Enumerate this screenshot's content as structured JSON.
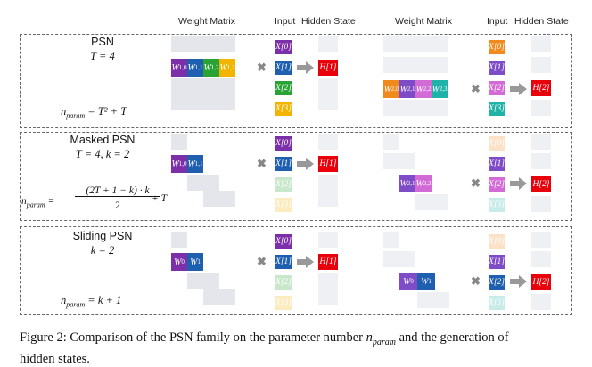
{
  "headers": {
    "weight_matrix": "Weight Matrix",
    "input": "Input",
    "hidden_state": "Hidden State"
  },
  "rows": [
    {
      "title": "PSN",
      "setting": "T = 4",
      "nparam_label": "n",
      "nparam_sub": "param",
      "nparam_formula": " = T² + T"
    },
    {
      "title": "Masked PSN",
      "setting": "T = 4, k = 2",
      "nparam_label": "n",
      "nparam_sub": "param",
      "frac_num": "(2T + 1 − k) · k",
      "frac_den": "2",
      "frac_tail": "+ T"
    },
    {
      "title": "Sliding PSN",
      "setting": "k = 2",
      "nparam_label": "n",
      "nparam_sub": "param",
      "nparam_formula": " = k + 1"
    }
  ],
  "weights": {
    "w10": "W",
    "w10s": "1,0",
    "w11": "W",
    "w11s": "1,1",
    "w12": "W",
    "w12s": "1,2",
    "w13": "W",
    "w13s": "1,3",
    "w20": "W",
    "w20s": "2,0",
    "w21": "W",
    "w21s": "2,1",
    "w22": "W",
    "w22s": "2,2",
    "w23": "W",
    "w23s": "2,3",
    "w0": "W",
    "w0s": "0",
    "w1": "W",
    "w1s": "1"
  },
  "inputs": [
    "X[0]",
    "X[1]",
    "X[2]",
    "X[3]"
  ],
  "hidden": [
    "H[1]",
    "H[2]"
  ],
  "colors": {
    "purple": "#7b2fa8",
    "blue": "#1f5fb0",
    "green": "#2aa335",
    "yellow": "#f2b400",
    "orange": "#f08a1c",
    "violet": "#7f4cc8",
    "pink": "#d36bd6",
    "teal": "#1fb3a8",
    "red": "#e8000b"
  },
  "caption": {
    "line1_a": "Figure 2: Comparison of the PSN family on the parameter number ",
    "line1_math": "n",
    "line1_sub": "param",
    "line1_b": " and the generation of",
    "line2": "hidden states."
  }
}
